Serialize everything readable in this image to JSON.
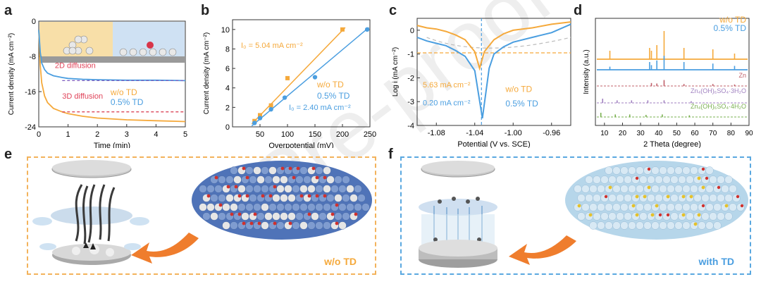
{
  "panels": {
    "a": "a",
    "b": "b",
    "c": "c",
    "d": "d",
    "e": "e",
    "f": "f"
  },
  "colors": {
    "woTD": "#f5a93b",
    "TD": "#4a9ee0",
    "ref_gray": "#8a8a8a",
    "arrow": "#ef7d2d"
  },
  "watermark": "Pre-proof",
  "chart_data": [
    {
      "panel": "a",
      "type": "line",
      "xlabel": "Time (min)",
      "ylabel": "Current density (mA cm⁻²)",
      "xlim": [
        0,
        5
      ],
      "ylim": [
        -24,
        0
      ],
      "xticks": [
        "0",
        "1",
        "2",
        "3",
        "4",
        "5"
      ],
      "yticks": [
        "0",
        "-8",
        "-16",
        "-24"
      ],
      "annotations": [
        "2D diffusion",
        "3D diffusion"
      ],
      "series": [
        {
          "name": "w/o TD",
          "color": "#f5a93b",
          "x": [
            0,
            0.05,
            0.1,
            0.2,
            0.3,
            0.5,
            0.8,
            1,
            1.5,
            2,
            3,
            4,
            5
          ],
          "y": [
            -2,
            -10,
            -14,
            -17,
            -18.5,
            -19.8,
            -20.6,
            -21,
            -21.6,
            -22,
            -22.4,
            -22.6,
            -22.8
          ]
        },
        {
          "name": "0.5% TD",
          "color": "#4a9ee0",
          "x": [
            0,
            0.05,
            0.1,
            0.2,
            0.3,
            0.5,
            0.8,
            1,
            1.5,
            2,
            3,
            4,
            5
          ],
          "y": [
            -2,
            -7,
            -9.5,
            -11,
            -11.8,
            -12.4,
            -12.8,
            -13,
            -13.2,
            -13.3,
            -13.4,
            -13.4,
            -13.5
          ]
        }
      ]
    },
    {
      "panel": "b",
      "type": "scatter",
      "xlabel": "Overpotential (mV)",
      "ylabel": "Current density (mA cm⁻²)",
      "xlim": [
        0,
        250
      ],
      "ylim": [
        0,
        11
      ],
      "xticks": [
        "50",
        "100",
        "150",
        "200",
        "250"
      ],
      "yticks": [
        "0",
        "2",
        "4",
        "6",
        "8",
        "10"
      ],
      "annotations": [
        "I₀ = 5.04 mA cm⁻²",
        "I₀ = 2.40 mA cm⁻²"
      ],
      "series": [
        {
          "name": "w/o TD",
          "color": "#f5a93b",
          "x": [
            40,
            50,
            70,
            100,
            200
          ],
          "y": [
            0.6,
            1.2,
            2.2,
            5.0,
            10.0
          ]
        },
        {
          "name": "0.5% TD",
          "color": "#4a9ee0",
          "x": [
            40,
            50,
            70,
            95,
            150,
            245
          ],
          "y": [
            0.4,
            0.9,
            1.8,
            3.0,
            5.1,
            10.0
          ]
        }
      ]
    },
    {
      "panel": "c",
      "type": "line",
      "xlabel": "Potential (V vs. SCE)",
      "ylabel": "Log i (mA cm⁻²)",
      "xlim": [
        -1.1,
        -0.94
      ],
      "ylim": [
        -4,
        0.5
      ],
      "xticks": [
        "-1.08",
        "-1.04",
        "-1.00",
        "-0.96"
      ],
      "yticks": [
        "0",
        "-1",
        "-2",
        "-3",
        "-4"
      ],
      "annotations": [
        "5.63 mA cm⁻²",
        "0.20 mA cm⁻²"
      ],
      "series": [
        {
          "name": "w/o TD",
          "color": "#f5a93b",
          "x": [
            -1.1,
            -1.09,
            -1.08,
            -1.07,
            -1.06,
            -1.05,
            -1.04,
            -1.035,
            -1.03,
            -1.02,
            -1.01,
            -1.0,
            -0.98,
            -0.96,
            -0.94
          ],
          "y": [
            0.2,
            0.1,
            0.05,
            -0.05,
            -0.2,
            -0.4,
            -0.9,
            -1.6,
            -0.9,
            -0.4,
            -0.15,
            0.0,
            0.1,
            0.25,
            0.35
          ]
        },
        {
          "name": "0.5% TD",
          "color": "#4a9ee0",
          "x": [
            -1.1,
            -1.09,
            -1.08,
            -1.07,
            -1.06,
            -1.05,
            -1.04,
            -1.032,
            -1.025,
            -1.02,
            -1.01,
            -1.0,
            -0.98,
            -0.96,
            -0.94
          ],
          "y": [
            -0.3,
            -0.45,
            -0.55,
            -0.65,
            -0.85,
            -1.1,
            -1.7,
            -3.7,
            -1.6,
            -1.0,
            -0.7,
            -0.5,
            -0.3,
            -0.1,
            0.25
          ]
        }
      ]
    },
    {
      "panel": "d",
      "type": "bar",
      "xlabel": "2 Theta (degree)",
      "ylabel": "Intensity (a.u.)",
      "xlim": [
        5,
        90
      ],
      "xticks": [
        "10",
        "20",
        "30",
        "40",
        "50",
        "60",
        "70",
        "80",
        "90"
      ],
      "series": [
        {
          "name": "w/o TD",
          "color": "#f5a93b",
          "x": [
            13,
            35,
            36,
            39,
            43,
            54,
            70,
            82
          ],
          "y": [
            0.3,
            0.4,
            0.3,
            0.5,
            1.0,
            0.4,
            0.35,
            0.2
          ]
        },
        {
          "name": "0.5% TD",
          "color": "#4a9ee0",
          "x": [
            13,
            35,
            36,
            39,
            43,
            54,
            70,
            82
          ],
          "y": [
            0.2,
            0.5,
            0.3,
            0.6,
            0.9,
            0.5,
            0.4,
            0.25
          ]
        },
        {
          "name": "Zn",
          "color": "#c0606a",
          "x": [
            36,
            39,
            43,
            54,
            70,
            82
          ],
          "y": [
            0.3,
            0.25,
            0.6,
            0.2,
            0.2,
            0.15
          ]
        },
        {
          "name": "Zn₄(OH)₆SO₄·3H₂O",
          "color": "#a080c0",
          "x": [
            9,
            17,
            25,
            34,
            43,
            58
          ],
          "y": [
            0.5,
            0.3,
            0.3,
            0.3,
            0.3,
            0.2
          ]
        },
        {
          "name": "Zn₄(OH)₆SO₄·4H₂O",
          "color": "#7ab050",
          "x": [
            8,
            16,
            24,
            33,
            42,
            57
          ],
          "y": [
            0.5,
            0.3,
            0.3,
            0.25,
            0.3,
            0.2
          ]
        }
      ]
    }
  ],
  "panel_e": {
    "label": "w/o TD"
  },
  "panel_f": {
    "label": "with TD"
  }
}
